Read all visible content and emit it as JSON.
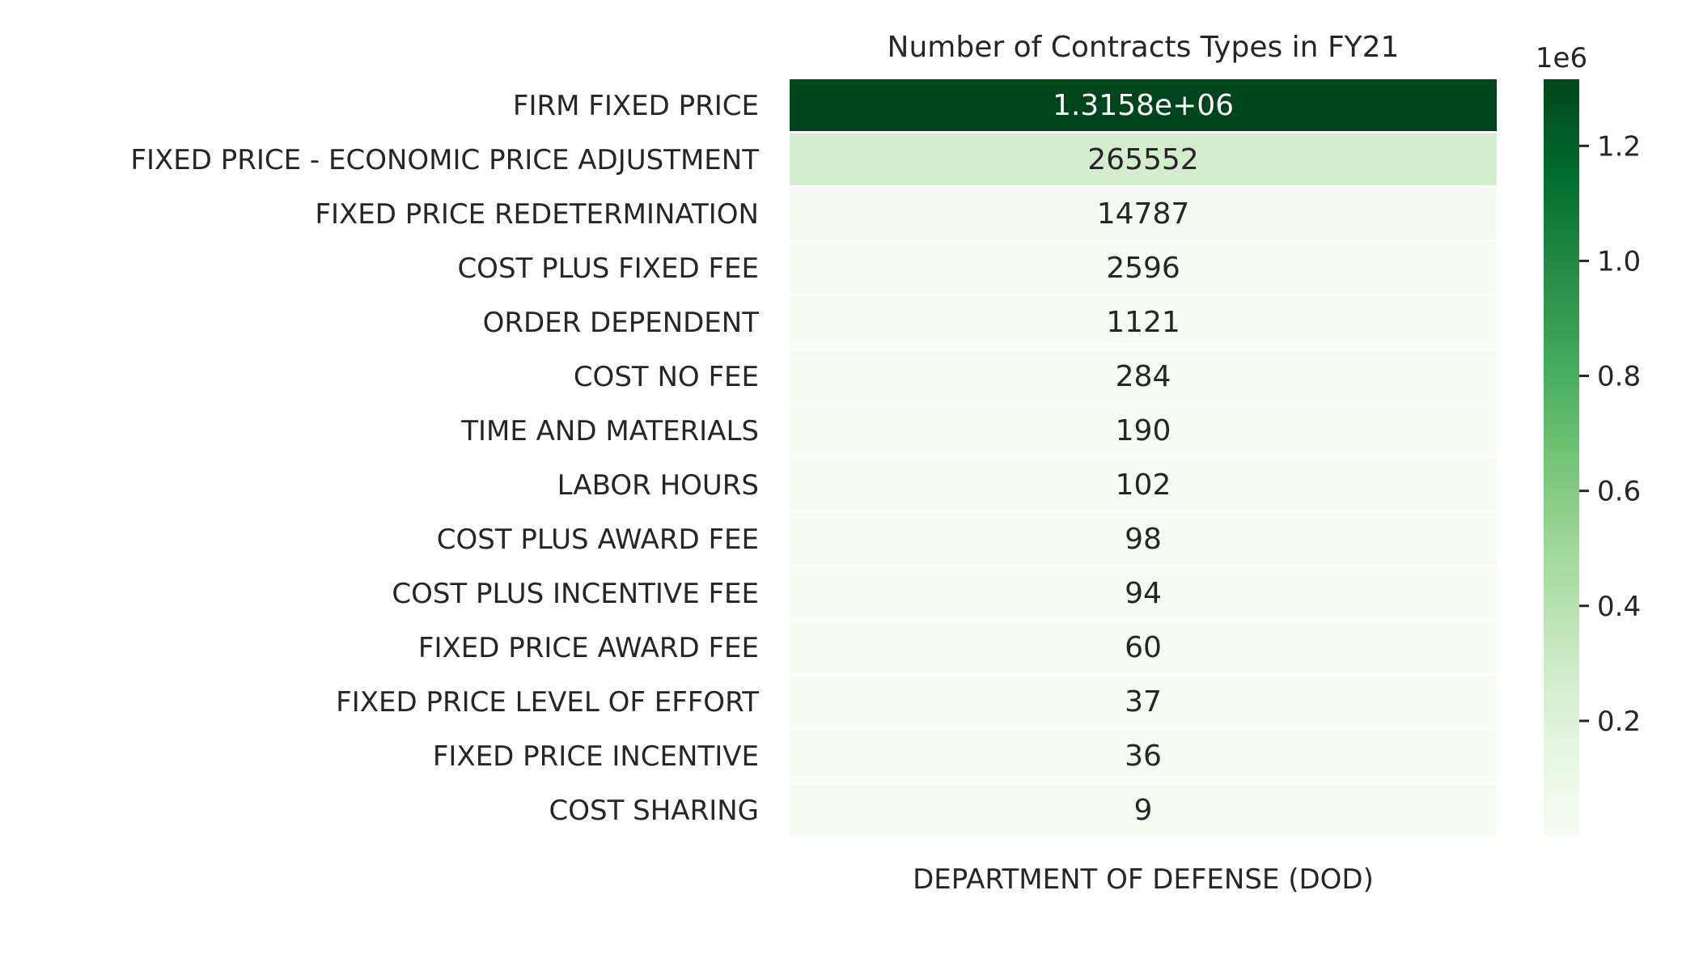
{
  "chart_data": {
    "type": "heatmap",
    "title": "Number of Contracts Types in FY21",
    "colormap": "Greens",
    "columns": [
      "DEPARTMENT OF DEFENSE (DOD)"
    ],
    "rows": [
      "FIRM FIXED PRICE",
      "FIXED PRICE - ECONOMIC PRICE ADJUSTMENT",
      "FIXED PRICE REDETERMINATION",
      "COST PLUS FIXED FEE",
      "ORDER DEPENDENT",
      "COST NO FEE",
      "TIME AND MATERIALS",
      "LABOR HOURS",
      "COST PLUS AWARD FEE",
      "COST PLUS INCENTIVE FEE",
      "FIXED PRICE AWARD FEE",
      "FIXED PRICE LEVEL OF EFFORT",
      "FIXED PRICE INCENTIVE",
      "COST SHARING"
    ],
    "values": [
      1315800,
      265552,
      14787,
      2596,
      1121,
      284,
      190,
      102,
      98,
      94,
      60,
      37,
      36,
      9
    ],
    "annotations": [
      "1.3158e+06",
      "265552",
      "14787",
      "2596",
      "1121",
      "284",
      "190",
      "102",
      "98",
      "94",
      "60",
      "37",
      "36",
      "9"
    ],
    "colorbar": {
      "offset_label": "1e6",
      "range": [
        9,
        1315800
      ],
      "ticks": [
        0.2,
        0.4,
        0.6,
        0.8,
        1.0,
        1.2
      ],
      "tick_labels": [
        "0.2",
        "0.4",
        "0.6",
        "0.8",
        "1.0",
        "1.2"
      ]
    },
    "colors": {
      "low": "#f7fcf5",
      "high": "#00441b",
      "text_dark": "#262626",
      "text_light": "#ffffff"
    }
  }
}
